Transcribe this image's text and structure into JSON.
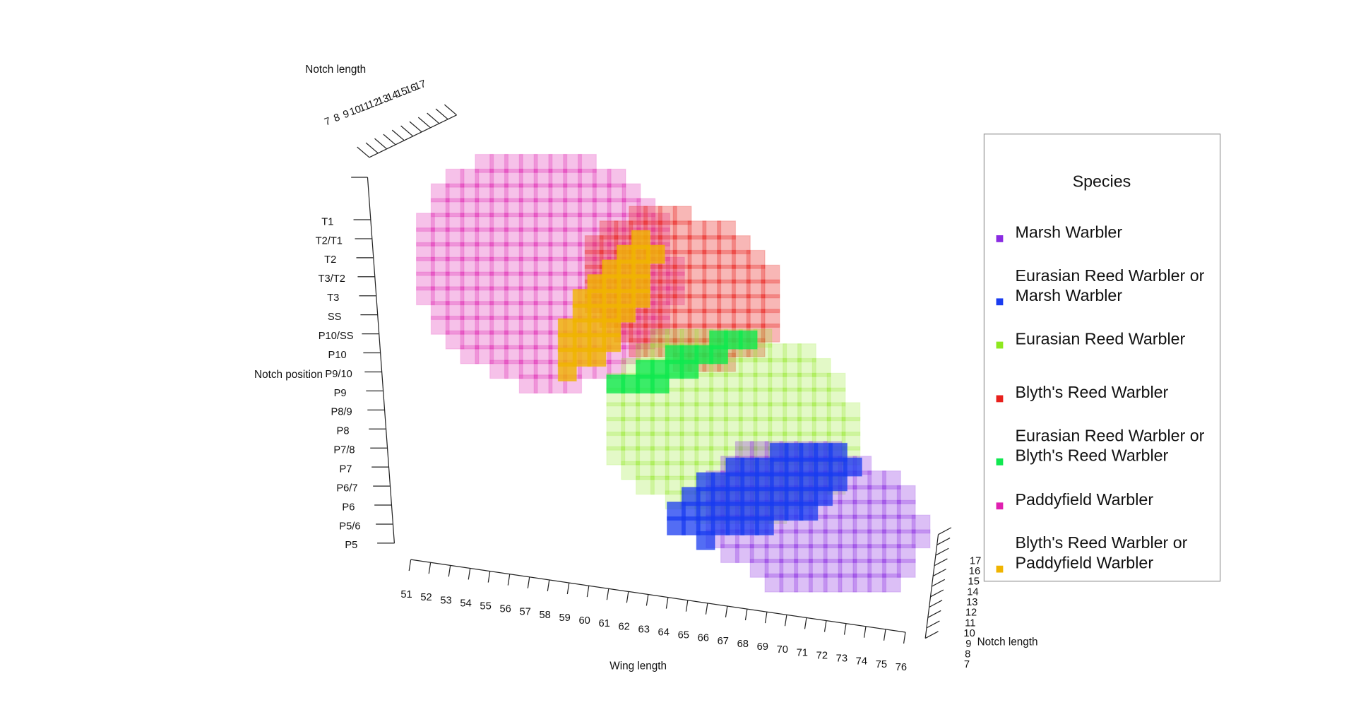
{
  "chart_data": {
    "type": "voxel3d",
    "x_axis": {
      "label": "Wing length",
      "ticks": [
        51,
        52,
        53,
        54,
        55,
        56,
        57,
        58,
        59,
        60,
        61,
        62,
        63,
        64,
        65,
        66,
        67,
        68,
        69,
        70,
        71,
        72,
        73,
        74,
        75,
        76
      ]
    },
    "y_axis": {
      "label": "Notch position",
      "categories": [
        "T1",
        "T2/T1",
        "T2",
        "T3/T2",
        "T3",
        "SS",
        "P10/SS",
        "P10",
        "P9/10",
        "P9",
        "P8/9",
        "P8",
        "P7/8",
        "P7",
        "P6/7",
        "P6",
        "P5/6",
        "P5"
      ]
    },
    "z_axis": {
      "label": "Notch length",
      "ticks": [
        7,
        8,
        9,
        10,
        11,
        12,
        13,
        14,
        15,
        16,
        17
      ]
    },
    "z_axis_top": {
      "label": "Notch length",
      "ticks": [
        7,
        8,
        9,
        10,
        11,
        12,
        13,
        14,
        15,
        16,
        17
      ]
    },
    "legend_title": "Species",
    "series": [
      {
        "name": "Marsh Warbler",
        "color": "#8a2be2"
      },
      {
        "name": "Eurasian Reed Warbler or Marsh Warbler",
        "color": "#1a3cf0"
      },
      {
        "name": "Eurasian Reed Warbler",
        "color": "#8ee81e"
      },
      {
        "name": "Blyth's Reed Warbler",
        "color": "#e8201c"
      },
      {
        "name": "Eurasian Reed Warbler or Blyth's Reed Warbler",
        "color": "#10e850"
      },
      {
        "name": "Paddyfield Warbler",
        "color": "#e020b0"
      },
      {
        "name": "Blyth's Reed Warbler or Paddyfield Warbler",
        "color": "#f0b400"
      }
    ]
  }
}
